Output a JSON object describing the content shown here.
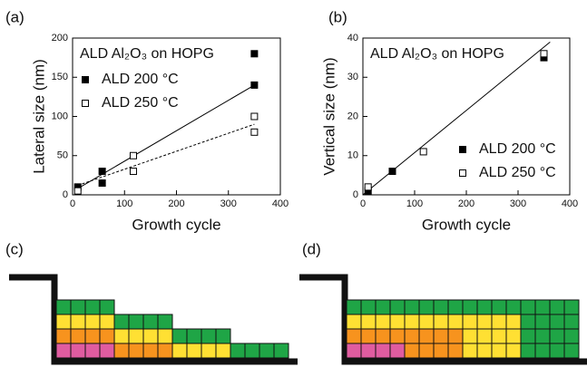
{
  "chart_data": [
    {
      "type": "scatter",
      "panel": "(a)",
      "title": "ALD Al₂O₃ on HOPG",
      "x_label": "Growth cycle",
      "y_label": "Lateral size (nm)",
      "xlim": [
        0,
        400
      ],
      "xticks": [
        0,
        100,
        200,
        300,
        400
      ],
      "ylim": [
        0,
        200
      ],
      "yticks": [
        0,
        50,
        100,
        150,
        200
      ],
      "legend": "upper left",
      "series": [
        {
          "name": "ALD 200 °C",
          "color": "#000000",
          "marker": "filled-square",
          "x": [
            10,
            57,
            57,
            350,
            350
          ],
          "values": [
            10,
            15,
            30,
            140,
            180
          ],
          "fit_x": [
            10,
            350
          ],
          "fit_y": [
            8,
            140
          ],
          "fit_style": "solid"
        },
        {
          "name": "ALD 250 °C",
          "color": "#000000",
          "marker": "open-square",
          "x": [
            10,
            117,
            117,
            350,
            350
          ],
          "values": [
            5,
            30,
            50,
            80,
            100
          ],
          "fit_x": [
            10,
            350
          ],
          "fit_y": [
            12,
            90
          ],
          "fit_style": "dashed"
        }
      ]
    },
    {
      "type": "scatter",
      "panel": "(b)",
      "title": "ALD Al₂O₃ on HOPG",
      "x_label": "Growth cycle",
      "y_label": "Vertical size (nm)",
      "xlim": [
        0,
        400
      ],
      "xticks": [
        0,
        100,
        200,
        300,
        400
      ],
      "ylim": [
        0,
        40
      ],
      "yticks": [
        0,
        10,
        20,
        30,
        40
      ],
      "legend": "lower right",
      "series": [
        {
          "name": "ALD 200 °C",
          "color": "#000000",
          "marker": "filled-square",
          "x": [
            10,
            57,
            350
          ],
          "values": [
            1,
            6,
            35
          ],
          "fit_x": [
            0,
            362
          ],
          "fit_y": [
            0,
            39
          ],
          "fit_style": "solid"
        },
        {
          "name": "ALD 250 °C",
          "color": "#000000",
          "marker": "open-square",
          "x": [
            10,
            117,
            350
          ],
          "values": [
            2,
            11,
            36
          ]
        }
      ]
    }
  ],
  "diagrams": [
    {
      "panel": "(c)"
    },
    {
      "panel": "(d)"
    }
  ]
}
